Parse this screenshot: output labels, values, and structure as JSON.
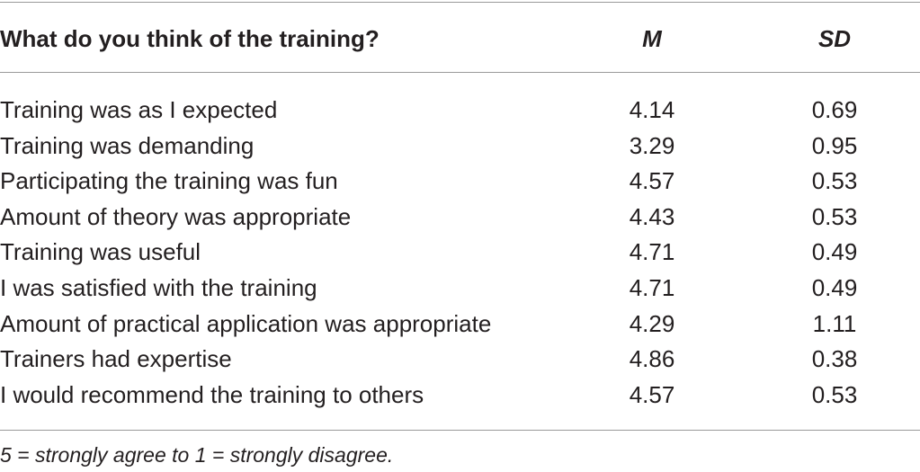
{
  "table": {
    "header": [
      "What do you think of the training?",
      "M",
      "SD"
    ],
    "rows": [
      [
        "Training was as I expected",
        "4.14",
        "0.69"
      ],
      [
        "Training was demanding",
        "3.29",
        "0.95"
      ],
      [
        "Participating the training was fun",
        "4.57",
        "0.53"
      ],
      [
        "Amount of theory was appropriate",
        "4.43",
        "0.53"
      ],
      [
        "Training was useful",
        "4.71",
        "0.49"
      ],
      [
        "I was satisfied with the training",
        "4.71",
        "0.49"
      ],
      [
        "Amount of practical application was appropriate",
        "4.29",
        "1.11"
      ],
      [
        "Trainers had expertise",
        "4.86",
        "0.38"
      ],
      [
        "I would recommend the training to others",
        "4.57",
        "0.53"
      ]
    ],
    "footnote": "5 = strongly agree to 1 = strongly disagree."
  }
}
